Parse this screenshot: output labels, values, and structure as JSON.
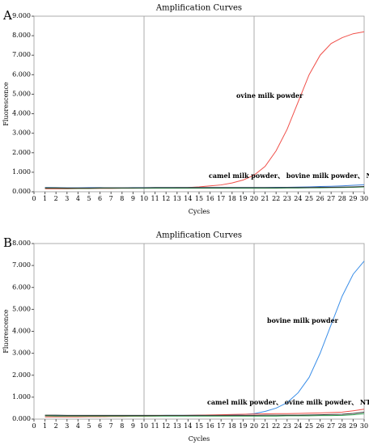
{
  "chart_data": [
    {
      "type": "line",
      "panel": "A",
      "title": "Amplification Curves",
      "xlabel": "Cycles",
      "ylabel": "Fluorescence",
      "x": [
        1,
        2,
        3,
        4,
        5,
        6,
        7,
        8,
        9,
        10,
        11,
        12,
        13,
        14,
        15,
        16,
        17,
        18,
        19,
        20,
        21,
        22,
        23,
        24,
        25,
        26,
        27,
        28,
        29,
        30
      ],
      "series": [
        {
          "color": "#f0504a",
          "values": [
            0.15,
            0.15,
            0.15,
            0.16,
            0.16,
            0.17,
            0.17,
            0.18,
            0.18,
            0.19,
            0.2,
            0.2,
            0.21,
            0.22,
            0.25,
            0.3,
            0.35,
            0.45,
            0.6,
            0.85,
            1.3,
            2.1,
            3.2,
            4.6,
            6.0,
            7.0,
            7.6,
            7.9,
            8.1,
            8.2
          ]
        },
        {
          "color": "#3a7dd8",
          "values": [
            0.22,
            0.21,
            0.2,
            0.2,
            0.21,
            0.21,
            0.2,
            0.2,
            0.21,
            0.21,
            0.22,
            0.22,
            0.22,
            0.22,
            0.22,
            0.22,
            0.22,
            0.22,
            0.22,
            0.22,
            0.22,
            0.23,
            0.23,
            0.24,
            0.25,
            0.27,
            0.28,
            0.3,
            0.33,
            0.36
          ]
        },
        {
          "color": "#2a9a4a",
          "values": [
            0.18,
            0.18,
            0.17,
            0.17,
            0.17,
            0.18,
            0.18,
            0.18,
            0.18,
            0.18,
            0.18,
            0.18,
            0.18,
            0.18,
            0.18,
            0.18,
            0.18,
            0.18,
            0.18,
            0.18,
            0.18,
            0.18,
            0.19,
            0.19,
            0.2,
            0.2,
            0.21,
            0.22,
            0.23,
            0.25
          ]
        },
        {
          "color": "#333333",
          "values": [
            0.2,
            0.2,
            0.19,
            0.19,
            0.19,
            0.2,
            0.2,
            0.2,
            0.2,
            0.2,
            0.21,
            0.21,
            0.21,
            0.21,
            0.21,
            0.21,
            0.21,
            0.21,
            0.21,
            0.21,
            0.21,
            0.21,
            0.22,
            0.22,
            0.22,
            0.23,
            0.23,
            0.24,
            0.25,
            0.27
          ]
        }
      ],
      "annotations": [
        "ovine milk powder",
        "camel milk powder、 bovine milk powder、 NTC"
      ],
      "xlim": [
        0,
        30
      ],
      "xticks": [
        0,
        1,
        2,
        3,
        4,
        5,
        6,
        7,
        8,
        9,
        10,
        11,
        12,
        13,
        14,
        15,
        16,
        17,
        18,
        19,
        20,
        21,
        22,
        23,
        24,
        25,
        26,
        27,
        28,
        29,
        30
      ],
      "ylim": [
        0,
        9
      ],
      "yticks": [
        {
          "value": 0,
          "label": "0.000"
        },
        {
          "value": 1,
          "label": "1.000"
        },
        {
          "value": 2,
          "label": "2.000"
        },
        {
          "value": 3,
          "label": "3.000"
        },
        {
          "value": 4,
          "label": "4.000"
        },
        {
          "value": 5,
          "label": "5.000"
        },
        {
          "value": 6,
          "label": "6.000"
        },
        {
          "value": 7,
          "label": "7.000"
        },
        {
          "value": 8,
          "label": "8.000"
        },
        {
          "value": 9,
          "label": "9.000"
        }
      ],
      "xgrid": [
        10,
        20
      ]
    },
    {
      "type": "line",
      "panel": "B",
      "title": "Amplification Curves",
      "xlabel": "Cycles",
      "ylabel": "Fluorescence",
      "x": [
        1,
        2,
        3,
        4,
        5,
        6,
        7,
        8,
        9,
        10,
        11,
        12,
        13,
        14,
        15,
        16,
        17,
        18,
        19,
        20,
        21,
        22,
        23,
        24,
        25,
        26,
        27,
        28,
        29,
        30
      ],
      "series": [
        {
          "color": "#3a8ee8",
          "values": [
            0.15,
            0.15,
            0.15,
            0.15,
            0.15,
            0.15,
            0.15,
            0.16,
            0.16,
            0.16,
            0.16,
            0.17,
            0.17,
            0.17,
            0.18,
            0.18,
            0.19,
            0.2,
            0.21,
            0.25,
            0.35,
            0.5,
            0.75,
            1.2,
            1.9,
            3.0,
            4.3,
            5.6,
            6.6,
            7.2
          ]
        },
        {
          "color": "#f0504a",
          "values": [
            0.1,
            0.1,
            0.1,
            0.1,
            0.11,
            0.11,
            0.12,
            0.12,
            0.13,
            0.13,
            0.14,
            0.15,
            0.16,
            0.17,
            0.18,
            0.19,
            0.2,
            0.21,
            0.22,
            0.23,
            0.24,
            0.25,
            0.25,
            0.26,
            0.27,
            0.28,
            0.3,
            0.32,
            0.38,
            0.45
          ]
        },
        {
          "color": "#2a9a4a",
          "values": [
            0.15,
            0.14,
            0.14,
            0.14,
            0.14,
            0.14,
            0.14,
            0.14,
            0.14,
            0.14,
            0.14,
            0.14,
            0.14,
            0.14,
            0.14,
            0.14,
            0.14,
            0.14,
            0.14,
            0.14,
            0.14,
            0.14,
            0.15,
            0.15,
            0.15,
            0.16,
            0.16,
            0.17,
            0.2,
            0.25
          ]
        },
        {
          "color": "#333333",
          "values": [
            0.18,
            0.18,
            0.17,
            0.17,
            0.17,
            0.17,
            0.17,
            0.17,
            0.17,
            0.17,
            0.17,
            0.17,
            0.17,
            0.17,
            0.17,
            0.17,
            0.17,
            0.17,
            0.17,
            0.17,
            0.18,
            0.18,
            0.18,
            0.18,
            0.19,
            0.2,
            0.21,
            0.22,
            0.26,
            0.32
          ]
        }
      ],
      "annotations": [
        "bovine milk powder",
        "camel milk powder、 ovine milk powder、 NTC"
      ],
      "xlim": [
        0,
        30
      ],
      "xticks": [
        0,
        1,
        2,
        3,
        4,
        5,
        6,
        7,
        8,
        9,
        10,
        11,
        12,
        13,
        14,
        15,
        16,
        17,
        18,
        19,
        20,
        21,
        22,
        23,
        24,
        25,
        26,
        27,
        28,
        29,
        30
      ],
      "ylim": [
        0,
        8
      ],
      "yticks": [
        {
          "value": 0,
          "label": "0.000"
        },
        {
          "value": 1,
          "label": "1.000"
        },
        {
          "value": 2,
          "label": "2.000"
        },
        {
          "value": 3,
          "label": "3.000"
        },
        {
          "value": 4,
          "label": "4.000"
        },
        {
          "value": 5,
          "label": "5.000"
        },
        {
          "value": 6,
          "label": "6.000"
        },
        {
          "value": 7,
          "label": "7.000"
        },
        {
          "value": 8,
          "label": "8.000"
        }
      ],
      "xgrid": [
        10,
        20
      ]
    }
  ]
}
